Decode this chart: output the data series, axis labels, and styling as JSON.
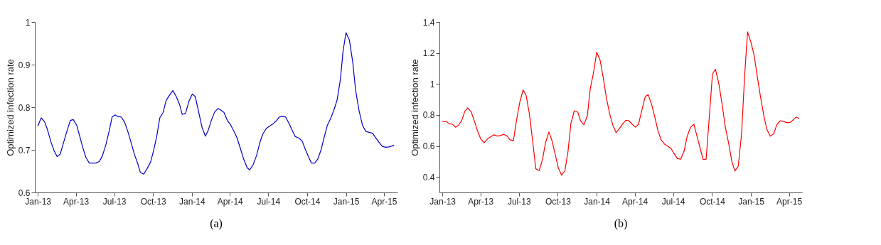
{
  "chart_data": [
    {
      "type": "line",
      "title": "(a)",
      "ylabel": "Optimized infection rate",
      "xlim": [
        "2012-12-25",
        "2015-05-03"
      ],
      "ylim": [
        0.6,
        1
      ],
      "yticks": [
        0.6,
        0.7,
        0.8,
        0.9,
        1
      ],
      "xticks": [
        {
          "value": "2013-01-01",
          "label": "Jan-13"
        },
        {
          "value": "2013-04-01",
          "label": "Apr-13"
        },
        {
          "value": "2013-07-01",
          "label": "Jul-13"
        },
        {
          "value": "2013-10-01",
          "label": "Oct-13"
        },
        {
          "value": "2014-01-01",
          "label": "Jan-14"
        },
        {
          "value": "2014-04-01",
          "label": "Apr-14"
        },
        {
          "value": "2014-07-01",
          "label": "Jul-14"
        },
        {
          "value": "2014-10-01",
          "label": "Oct-14"
        },
        {
          "value": "2015-01-01",
          "label": "Jan-15"
        },
        {
          "value": "2015-04-01",
          "label": "Apr-15"
        }
      ],
      "grid": false,
      "legend": false,
      "marker": "none",
      "line_style": "solid",
      "x": [
        "2013-01-01",
        "2013-01-09",
        "2013-01-17",
        "2013-01-24",
        "2013-02-01",
        "2013-02-09",
        "2013-02-16",
        "2013-02-23",
        "2013-03-03",
        "2013-03-11",
        "2013-03-19",
        "2013-03-26",
        "2013-04-03",
        "2013-04-10",
        "2013-04-18",
        "2013-04-25",
        "2013-05-03",
        "2013-05-11",
        "2013-05-19",
        "2013-05-27",
        "2013-06-03",
        "2013-06-11",
        "2013-06-19",
        "2013-06-26",
        "2013-07-03",
        "2013-07-10",
        "2013-07-18",
        "2013-07-26",
        "2013-08-02",
        "2013-08-10",
        "2013-08-18",
        "2013-08-26",
        "2013-09-01",
        "2013-09-09",
        "2013-09-17",
        "2013-09-25",
        "2013-10-02",
        "2013-10-10",
        "2013-10-17",
        "2013-10-25",
        "2013-11-01",
        "2013-11-09",
        "2013-11-17",
        "2013-11-25",
        "2013-12-03",
        "2013-12-09",
        "2013-12-17",
        "2013-12-25",
        "2014-01-02",
        "2014-01-09",
        "2014-01-17",
        "2014-01-25",
        "2014-02-02",
        "2014-02-08",
        "2014-02-16",
        "2014-02-24",
        "2014-03-04",
        "2014-03-11",
        "2014-03-18",
        "2014-03-26",
        "2014-04-03",
        "2014-04-11",
        "2014-04-18",
        "2014-04-26",
        "2014-05-04",
        "2014-05-12",
        "2014-05-18",
        "2014-05-26",
        "2014-06-03",
        "2014-06-11",
        "2014-06-18",
        "2014-06-26",
        "2014-07-04",
        "2014-07-12",
        "2014-07-20",
        "2014-07-27",
        "2014-08-04",
        "2014-08-11",
        "2014-08-19",
        "2014-08-26",
        "2014-09-03",
        "2014-09-11",
        "2014-09-19",
        "2014-09-26",
        "2014-10-04",
        "2014-10-11",
        "2014-10-19",
        "2014-10-26",
        "2014-11-03",
        "2014-11-10",
        "2014-11-18",
        "2014-11-25",
        "2014-12-03",
        "2014-12-11",
        "2014-12-19",
        "2014-12-25",
        "2015-01-01",
        "2015-01-09",
        "2015-01-17",
        "2015-01-24",
        "2015-02-01",
        "2015-02-09",
        "2015-02-17",
        "2015-02-25",
        "2015-03-05",
        "2015-03-12",
        "2015-03-20",
        "2015-03-28",
        "2015-04-05",
        "2015-04-13",
        "2015-04-20",
        "2015-04-25"
      ],
      "series": [
        {
          "color": "#0000cc",
          "values": [
            0.756,
            0.775,
            0.766,
            0.747,
            0.719,
            0.697,
            0.684,
            0.69,
            0.717,
            0.744,
            0.769,
            0.771,
            0.758,
            0.733,
            0.704,
            0.682,
            0.669,
            0.669,
            0.669,
            0.673,
            0.686,
            0.711,
            0.744,
            0.777,
            0.782,
            0.778,
            0.777,
            0.764,
            0.744,
            0.717,
            0.689,
            0.667,
            0.647,
            0.643,
            0.656,
            0.671,
            0.697,
            0.733,
            0.775,
            0.788,
            0.816,
            0.828,
            0.839,
            0.825,
            0.806,
            0.783,
            0.786,
            0.814,
            0.831,
            0.825,
            0.789,
            0.753,
            0.732,
            0.744,
            0.769,
            0.789,
            0.797,
            0.793,
            0.788,
            0.769,
            0.758,
            0.743,
            0.728,
            0.703,
            0.677,
            0.658,
            0.653,
            0.665,
            0.686,
            0.717,
            0.737,
            0.75,
            0.756,
            0.761,
            0.768,
            0.777,
            0.779,
            0.777,
            0.762,
            0.747,
            0.731,
            0.728,
            0.721,
            0.703,
            0.684,
            0.669,
            0.669,
            0.678,
            0.7,
            0.728,
            0.758,
            0.772,
            0.792,
            0.817,
            0.867,
            0.931,
            0.975,
            0.958,
            0.906,
            0.839,
            0.792,
            0.758,
            0.743,
            0.741,
            0.739,
            0.729,
            0.718,
            0.708,
            0.706,
            0.707,
            0.709,
            0.711
          ]
        }
      ]
    },
    {
      "type": "line",
      "title": "(b)",
      "ylabel": "Optimized infection rate",
      "xlim": [
        "2012-12-25",
        "2015-05-02"
      ],
      "ylim": [
        0.3,
        1.4
      ],
      "yticks": [
        0.4,
        0.6,
        0.8,
        1,
        1.2,
        1.4
      ],
      "xticks": [
        {
          "value": "2013-01-01",
          "label": "Jan-13"
        },
        {
          "value": "2013-04-01",
          "label": "Apr-13"
        },
        {
          "value": "2013-07-01",
          "label": "Jul-13"
        },
        {
          "value": "2013-10-01",
          "label": "Oct-13"
        },
        {
          "value": "2014-01-01",
          "label": "Jan-14"
        },
        {
          "value": "2014-04-01",
          "label": "Apr-14"
        },
        {
          "value": "2014-07-01",
          "label": "Jul-14"
        },
        {
          "value": "2014-10-01",
          "label": "Oct-14"
        },
        {
          "value": "2015-01-01",
          "label": "Jan-15"
        },
        {
          "value": "2015-04-01",
          "label": "Apr-15"
        }
      ],
      "grid": false,
      "legend": false,
      "marker": "none",
      "line_style": "solid",
      "x": [
        "2013-01-01",
        "2013-01-09",
        "2013-01-17",
        "2013-01-25",
        "2013-02-01",
        "2013-02-08",
        "2013-02-16",
        "2013-02-23",
        "2013-03-02",
        "2013-03-10",
        "2013-03-18",
        "2013-03-25",
        "2013-04-02",
        "2013-04-10",
        "2013-04-18",
        "2013-04-25",
        "2013-05-03",
        "2013-05-11",
        "2013-05-18",
        "2013-05-26",
        "2013-06-03",
        "2013-06-10",
        "2013-06-18",
        "2013-06-25",
        "2013-07-03",
        "2013-07-11",
        "2013-07-18",
        "2013-07-26",
        "2013-08-03",
        "2013-08-10",
        "2013-08-18",
        "2013-08-26",
        "2013-09-02",
        "2013-09-10",
        "2013-09-17",
        "2013-09-25",
        "2013-10-02",
        "2013-10-10",
        "2013-10-18",
        "2013-10-25",
        "2013-11-01",
        "2013-11-09",
        "2013-11-17",
        "2013-11-24",
        "2013-12-02",
        "2013-12-10",
        "2013-12-17",
        "2013-12-25",
        "2014-01-01",
        "2014-01-09",
        "2014-01-17",
        "2014-01-24",
        "2014-02-01",
        "2014-02-09",
        "2014-02-16",
        "2014-02-24",
        "2014-03-04",
        "2014-03-11",
        "2014-03-18",
        "2014-03-26",
        "2014-04-03",
        "2014-04-10",
        "2014-04-18",
        "2014-04-26",
        "2014-05-03",
        "2014-05-11",
        "2014-05-19",
        "2014-05-26",
        "2014-06-03",
        "2014-06-11",
        "2014-06-18",
        "2014-06-26",
        "2014-07-04",
        "2014-07-11",
        "2014-07-19",
        "2014-07-27",
        "2014-08-03",
        "2014-08-11",
        "2014-08-19",
        "2014-08-26",
        "2014-09-03",
        "2014-09-10",
        "2014-09-17",
        "2014-09-25",
        "2014-10-02",
        "2014-10-09",
        "2014-10-17",
        "2014-10-25",
        "2014-11-01",
        "2014-11-09",
        "2014-11-17",
        "2014-11-24",
        "2014-12-02",
        "2014-12-10",
        "2014-12-17",
        "2014-12-24",
        "2015-01-01",
        "2015-01-09",
        "2015-01-16",
        "2015-01-24",
        "2015-02-01",
        "2015-02-08",
        "2015-02-16",
        "2015-02-24",
        "2015-03-03",
        "2015-03-11",
        "2015-03-19",
        "2015-03-26",
        "2015-04-03",
        "2015-04-11",
        "2015-04-18",
        "2015-04-25"
      ],
      "series": [
        {
          "color": "#ff0000",
          "values": [
            0.759,
            0.759,
            0.744,
            0.74,
            0.721,
            0.733,
            0.766,
            0.823,
            0.846,
            0.82,
            0.759,
            0.698,
            0.644,
            0.621,
            0.647,
            0.659,
            0.672,
            0.664,
            0.667,
            0.675,
            0.664,
            0.64,
            0.634,
            0.759,
            0.881,
            0.962,
            0.927,
            0.805,
            0.621,
            0.453,
            0.441,
            0.514,
            0.621,
            0.69,
            0.637,
            0.545,
            0.461,
            0.411,
            0.441,
            0.56,
            0.744,
            0.827,
            0.82,
            0.762,
            0.736,
            0.797,
            0.972,
            1.079,
            1.205,
            1.156,
            1.034,
            0.911,
            0.805,
            0.728,
            0.686,
            0.713,
            0.744,
            0.766,
            0.763,
            0.74,
            0.721,
            0.74,
            0.832,
            0.919,
            0.931,
            0.869,
            0.782,
            0.698,
            0.637,
            0.611,
            0.599,
            0.583,
            0.548,
            0.518,
            0.515,
            0.568,
            0.66,
            0.721,
            0.74,
            0.667,
            0.583,
            0.512,
            0.515,
            0.805,
            1.064,
            1.095,
            1.003,
            0.866,
            0.728,
            0.621,
            0.499,
            0.438,
            0.469,
            0.683,
            1.049,
            1.336,
            1.27,
            1.179,
            1.049,
            0.911,
            0.789,
            0.705,
            0.663,
            0.679,
            0.736,
            0.762,
            0.759,
            0.751,
            0.751,
            0.769,
            0.786,
            0.778
          ]
        }
      ]
    }
  ]
}
